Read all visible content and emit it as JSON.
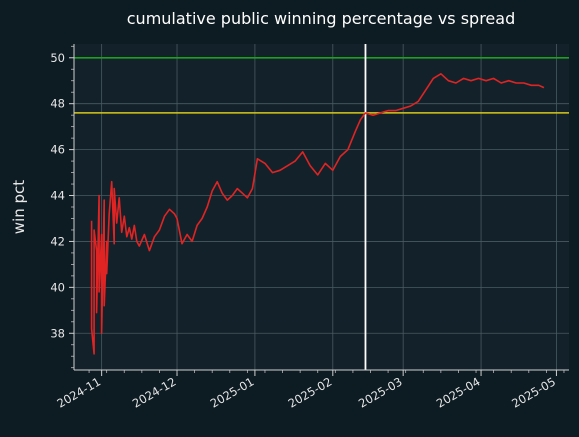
{
  "colors": {
    "figure_bg": "#0d1b22",
    "plot_bg": "#13222a",
    "grid": "#4a5a62",
    "series_line": "#e02424",
    "ref_line_50": "#1fa01f",
    "ref_line_47_6": "#d8c81a",
    "vertical_marker": "#ffffff",
    "text": "#ffffff"
  },
  "chart_data": {
    "type": "line",
    "title": "cumulative public winning percentage vs spread",
    "xlabel": "",
    "ylabel": "win pct",
    "xlim": [
      "2024-10-21",
      "2025-05-06"
    ],
    "ylim": [
      36.4,
      50.6
    ],
    "x_ticks": [
      "2024-11",
      "2024-12",
      "2025-01",
      "2025-02",
      "2025-03",
      "2025-04",
      "2025-05"
    ],
    "y_ticks": [
      38,
      40,
      42,
      44,
      46,
      48,
      50
    ],
    "grid": true,
    "reference_lines": [
      {
        "axis": "y",
        "value": 50.0,
        "color": "#1fa01f"
      },
      {
        "axis": "y",
        "value": 47.6,
        "color": "#d8c81a"
      },
      {
        "axis": "x",
        "value": "2025-02-14",
        "color": "#ffffff"
      }
    ],
    "series": [
      {
        "x": [
          "2024-10-28",
          "2024-10-28",
          "2024-10-29",
          "2024-10-29",
          "2024-10-30",
          "2024-10-30",
          "2024-10-31",
          "2024-10-31",
          "2024-11-01",
          "2024-11-01",
          "2024-11-02",
          "2024-11-02",
          "2024-11-03",
          "2024-11-03",
          "2024-11-04",
          "2024-11-05",
          "2024-11-06",
          "2024-11-06",
          "2024-11-07",
          "2024-11-08",
          "2024-11-09",
          "2024-11-10",
          "2024-11-11",
          "2024-11-12",
          "2024-11-13",
          "2024-11-14",
          "2024-11-15",
          "2024-11-16",
          "2024-11-18",
          "2024-11-20",
          "2024-11-22",
          "2024-11-24",
          "2024-11-26",
          "2024-11-28",
          "2024-11-30",
          "2024-12-01",
          "2024-12-03",
          "2024-12-05",
          "2024-12-07",
          "2024-12-09",
          "2024-12-11",
          "2024-12-13",
          "2024-12-15",
          "2024-12-17",
          "2024-12-19",
          "2024-12-21",
          "2024-12-23",
          "2024-12-25",
          "2024-12-27",
          "2024-12-29",
          "2024-12-31",
          "2025-01-02",
          "2025-01-05",
          "2025-01-08",
          "2025-01-11",
          "2025-01-14",
          "2025-01-17",
          "2025-01-20",
          "2025-01-23",
          "2025-01-26",
          "2025-01-29",
          "2025-02-01",
          "2025-02-04",
          "2025-02-07",
          "2025-02-10",
          "2025-02-12",
          "2025-02-14",
          "2025-02-17",
          "2025-02-20",
          "2025-02-23",
          "2025-02-26",
          "2025-03-01",
          "2025-03-04",
          "2025-03-07",
          "2025-03-10",
          "2025-03-13",
          "2025-03-16",
          "2025-03-19",
          "2025-03-22",
          "2025-03-25",
          "2025-03-28",
          "2025-03-31",
          "2025-04-03",
          "2025-04-06",
          "2025-04-09",
          "2025-04-12",
          "2025-04-15",
          "2025-04-18",
          "2025-04-21",
          "2025-04-24",
          "2025-04-26"
        ],
        "y": [
          42.9,
          38.2,
          37.1,
          42.5,
          41.6,
          38.9,
          44.0,
          39.8,
          42.3,
          38.0,
          43.8,
          39.2,
          42.0,
          40.6,
          43.2,
          44.6,
          41.9,
          44.3,
          42.8,
          43.9,
          42.4,
          43.1,
          42.2,
          42.6,
          42.1,
          42.7,
          42.0,
          41.8,
          42.3,
          41.6,
          42.2,
          42.5,
          43.1,
          43.4,
          43.2,
          43.0,
          41.9,
          42.3,
          42.0,
          42.7,
          43.0,
          43.5,
          44.2,
          44.6,
          44.1,
          43.8,
          44.0,
          44.3,
          44.1,
          43.9,
          44.3,
          45.6,
          45.4,
          45.0,
          45.1,
          45.3,
          45.5,
          45.9,
          45.3,
          44.9,
          45.4,
          45.1,
          45.7,
          46.0,
          46.8,
          47.3,
          47.6,
          47.5,
          47.6,
          47.7,
          47.7,
          47.8,
          47.9,
          48.1,
          48.6,
          49.1,
          49.3,
          49.0,
          48.9,
          49.1,
          49.0,
          49.1,
          49.0,
          49.1,
          48.9,
          49.0,
          48.9,
          48.9,
          48.8,
          48.8,
          48.7
        ]
      }
    ]
  }
}
